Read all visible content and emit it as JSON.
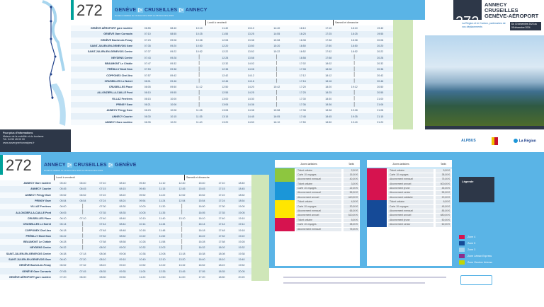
{
  "line": "272",
  "outbound": {
    "title": [
      "GENÈVE",
      "CRUSEILLES",
      "ANNECY"
    ],
    "subtitle": "Horaires valables du 10 décembre 2023 au 08 décembre 2024",
    "section_weekday": "Lundi à vendredi",
    "section_weekend": "Samedi et dimanche",
    "stops": [
      "GENÈVE AÉROPORT gare routière",
      "GENÈVE Gare Cornavin",
      "GENÈVE Bachet-de-Pesay",
      "SAINT-JULIEN-EN-GENEVOIS Gare",
      "SAINT-JULIEN-EN-GENEVOIS Centre",
      "NEYDENS Centre",
      "BEAUMONT Le Châble",
      "PRÉSILLY Mont Sion",
      "COPPONEX Chef-lieu",
      "CRUSEILLES Le Noiret",
      "CRUSEILLES Place",
      "ALLONZIER-LA-CAILLE Pont",
      "VILLAZ Ferrières",
      "PRINGY Gare",
      "ANNECY Pringy Gare",
      "ANNECY Courier",
      "ANNECY Gare routière"
    ],
    "times": [
      "06:55 08:40 10:10 11:40 13:10 14:40 16:10 17:10 18:10 19:40",
      "07:10 08:55 10:25 11:55 13:25 14:55 16:25 17:25 18:25 19:55",
      "07:23 09:08 10:38 12:08 13:38 15:08 16:38 17:38 18:38 20:08",
      "07:35 09:20 10:50 12:20 13:50 15:20 16:50 17:50 18:50 20:20",
      "07:37 09:22 10:52 12:22 13:52 15:22 16:52 17:52 18:52 20:22",
      "07:43 09:28 | 12:28 13:58 | 16:58 17:58 | 20:28",
      "07:47 09:32 | 12:32 14:02 | 17:02 18:02 | 20:32",
      "07:53 09:38 | 12:38 14:08 | 17:08 18:08 | 20:38",
      "07:57 09:42 | 12:42 14:12 | 17:12 18:12 | 20:42",
      "08:01 09:46 | 12:46 14:16 | 17:16 18:16 | 20:46",
      "08:05 09:50 11:12 12:50 14:20 15:42 17:20 18:20 19:12 20:50",
      "08:10 09:55 | 12:55 14:25 | 17:25 18:25 | 20:55",
      "08:15 10:00 | 13:00 14:30 | 17:30 18:30 | 21:00",
      "08:21 10:06 | 13:06 14:36 | 17:36 18:36 | 21:06",
      "08:23 10:08 11:28 13:08 14:38 15:58 17:38 18:38 19:28 21:08",
      "08:30 10:15 11:35 13:15 14:45 16:05 17:45 18:45 19:35 21:15",
      "08:35 10:20 11:40 13:20 14:50 16:10 17:50 18:50 19:40 21:20"
    ]
  },
  "inbound": {
    "title": [
      "ANNECY",
      "CRUSEILLES",
      "GENÈVE"
    ],
    "subtitle": "Horaires valables du 10 décembre 2023 au 08 décembre 2024",
    "section_weekday": "Lundi à vendredi",
    "section_weekend": "Samedi et dimanche",
    "stops": [
      "ANNECY Gare routière",
      "ANNECY Courier",
      "ANNECY Pringy Gare",
      "PRINGY Gare",
      "VILLAZ Ferrières",
      "ALLONZIER-LA-CAILLE Pont",
      "CRUSEILLES Place",
      "CRUSEILLES Le Noiret",
      "COPPONEX Chef-lieu",
      "PRÉSILLY Mont Sion",
      "BEAUMONT Le Châble",
      "NEYDENS Centre",
      "SAINT-JULIEN-EN-GENEVOIS Centre",
      "SAINT-JULIEN-EN-GENEVOIS Gare",
      "GENÈVE Bachet-de-Pesay",
      "GENÈVE Gare Cornavin",
      "GENÈVE AÉROPORT gare routière"
    ],
    "times": [
      "05:40 06:40 07:10 08:10 09:40 11:10 12:40 15:40 17:10 18:40",
      "05:45 06:45 07:15 08:15 09:45 11:15 12:45 15:45 17:15 18:45",
      "05:52 06:52 07:22 08:22 09:52 11:22 12:52 15:52 17:22 18:52",
      "05:54 06:54 07:24 08:24 09:54 11:24 12:54 15:54 17:24 18:54",
      "06:00 | 07:30 08:30 10:00 11:30 | 16:00 17:30 19:00",
      "06:05 | 07:35 08:35 10:05 11:35 | 16:05 17:35 19:05",
      "06:10 07:10 07:40 08:40 10:10 11:40 13:10 16:10 17:40 19:10",
      "06:14 | 07:44 08:44 10:14 11:44 | 16:14 17:44 19:14",
      "06:18 | 07:48 08:48 10:18 11:48 | 16:18 17:48 19:18",
      "06:22 | 07:52 08:52 10:22 11:52 | 16:22 17:52 19:22",
      "06:28 | 07:58 08:58 10:28 11:58 | 16:28 17:58 19:28",
      "06:32 | 08:02 09:02 10:32 12:02 | 16:32 18:02 19:32",
      "06:38 07:18 08:08 09:08 10:38 12:08 13:18 16:38 18:08 19:38",
      "06:40 07:20 08:10 09:10 10:40 12:10 13:20 16:40 18:10 19:40",
      "06:52 07:32 08:22 09:22 10:52 12:22 13:32 16:52 18:22 19:52",
      "07:05 07:45 08:35 09:35 11:05 12:35 13:45 17:05 18:35 20:05",
      "07:20 08:00 08:50 09:50 11:20 12:50 14:00 17:20 18:50 20:20"
    ]
  },
  "cover": {
    "route": [
      "ANNECY",
      "CRUSEILLES",
      "GENÈVE-AÉROPORT"
    ],
    "tagline": "La Région et le Canton, partenaires de vos déplacements",
    "validity": "Du 10 décembre 2023 au 08 décembre 2024",
    "logos": [
      "ALPBUS",
      "République et Canton de Genève",
      "La Région Auvergne-Rhône-Alpes"
    ]
  },
  "info": {
    "heading": "Pour plus d'informations",
    "lines": [
      "Maison de la mobilité et du tourisme",
      "Tél. 04 50 45 00 00",
      "www.auvergnerhonealpes.fr"
    ]
  },
  "tariffs": {
    "left": {
      "header": "Zones tarifaires",
      "price_header": "Tarifs",
      "groups": [
        {
          "color": "#8dc63f",
          "rows": [
            [
              "Ticket unitaire",
              "2,00 €"
            ],
            [
              "Carte 10 voyages",
              "15,00 €"
            ],
            [
              "Abonnement mensuel",
              "40,00 €"
            ]
          ]
        },
        {
          "color": "#1b96d8",
          "rows": [
            [
              "Ticket unitaire",
              "3,00 €"
            ],
            [
              "Carte 10 voyages",
              "22,00 €"
            ],
            [
              "Abonnement mensuel",
              "55,00 €"
            ],
            [
              "Abonnement annuel",
              "440,00 €"
            ]
          ]
        },
        {
          "color": "#ffe600",
          "rows": [
            [
              "Ticket unitaire",
              "4,00 €"
            ],
            [
              "Carte 10 voyages",
              "30,00 €"
            ],
            [
              "Abonnement mensuel",
              "65,00 €"
            ],
            [
              "Abonnement annuel",
              "520,00 €"
            ]
          ]
        },
        {
          "color": "#d6134f",
          "rows": [
            [
              "Ticket unitaire",
              "5,00 €"
            ],
            [
              "Carte 10 voyages",
              "38,00 €"
            ],
            [
              "Abonnement mensuel",
              "75,00 €"
            ]
          ]
        }
      ]
    },
    "right": {
      "header": "Zones tarifaires",
      "price_header": "Tarifs",
      "groups": [
        {
          "color": "#d6134f",
          "rows": [
            [
              "Ticket unitaire",
              "5,00 €"
            ],
            [
              "Carte 10 voyages",
              "38,00 €"
            ],
            [
              "Abonnement mensuel",
              "75,00 €"
            ],
            [
              "Abonnement annuel",
              "600,00 €"
            ],
            [
              "Abonnement jeune",
              "45,00 €"
            ],
            [
              "Abonnement senior",
              "55,00 €"
            ],
            [
              "Abonnement solidaire",
              "20,00 €"
            ]
          ]
        },
        {
          "color": "#154a97",
          "rows": [
            [
              "Ticket unitaire",
              "6,00 €"
            ],
            [
              "Carte 10 voyages",
              "45,00 €"
            ],
            [
              "Abonnement mensuel",
              "85,00 €"
            ],
            [
              "Abonnement annuel",
              "680,00 €"
            ],
            [
              "Abonnement jeune",
              "50,00 €"
            ],
            [
              "Abonnement senior",
              "60,00 €"
            ]
          ]
        }
      ]
    }
  },
  "legend": {
    "title": "Légende",
    "items": [
      {
        "color": "#d6134f",
        "label": "Zone 4"
      },
      {
        "color": "#154a97",
        "label": "Zone 5"
      },
      {
        "color": "#a7d5ee",
        "label": "Zone 3"
      },
      {
        "color": "#8e2c8a",
        "label": "Zone Léman Express"
      },
      {
        "color": "#c4d600",
        "label": "Zone Genève Unireso"
      }
    ]
  },
  "colors": {
    "band": "#5ab4e6",
    "dark": "#2d3748",
    "accent": "#1e3f8a",
    "teal": "#00a19a",
    "green": "#cfe6b8"
  }
}
